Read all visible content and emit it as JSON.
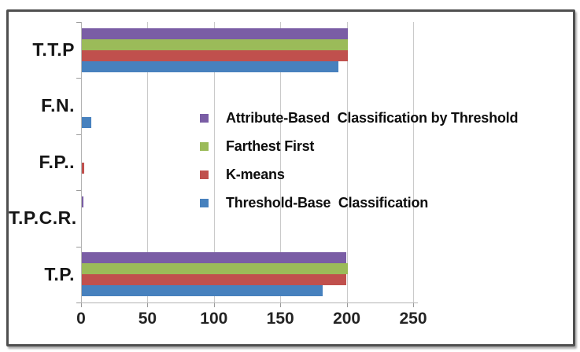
{
  "chart_data": {
    "type": "bar",
    "orientation": "horizontal",
    "title": "",
    "xlabel": "",
    "ylabel": "",
    "categories": [
      "T.T.P",
      "F.N.",
      "F.P..",
      "T.P.C.R.",
      "T.P."
    ],
    "series": [
      {
        "name": "Attribute-Based  Classification by Threshold",
        "color": "#7A5DA5",
        "values": [
          200,
          0,
          0,
          1,
          199
        ]
      },
      {
        "name": "Farthest First",
        "color": "#9BBB59",
        "values": [
          200,
          0,
          0,
          0,
          200
        ]
      },
      {
        "name": "K-means",
        "color": "#C0504D",
        "values": [
          200,
          0,
          2,
          0,
          199
        ]
      },
      {
        "name": "Threshold-Base  Classification",
        "color": "#4781BE",
        "values": [
          193,
          7,
          0,
          0,
          181
        ]
      }
    ],
    "x_ticks": [
      0,
      50,
      100,
      150,
      200,
      250
    ],
    "xlim": [
      0,
      250
    ],
    "grid": true,
    "legend_position": "overlay-center-right",
    "series_order_note": "series listed top-to-bottom within each category group; categories listed top-to-bottom"
  }
}
